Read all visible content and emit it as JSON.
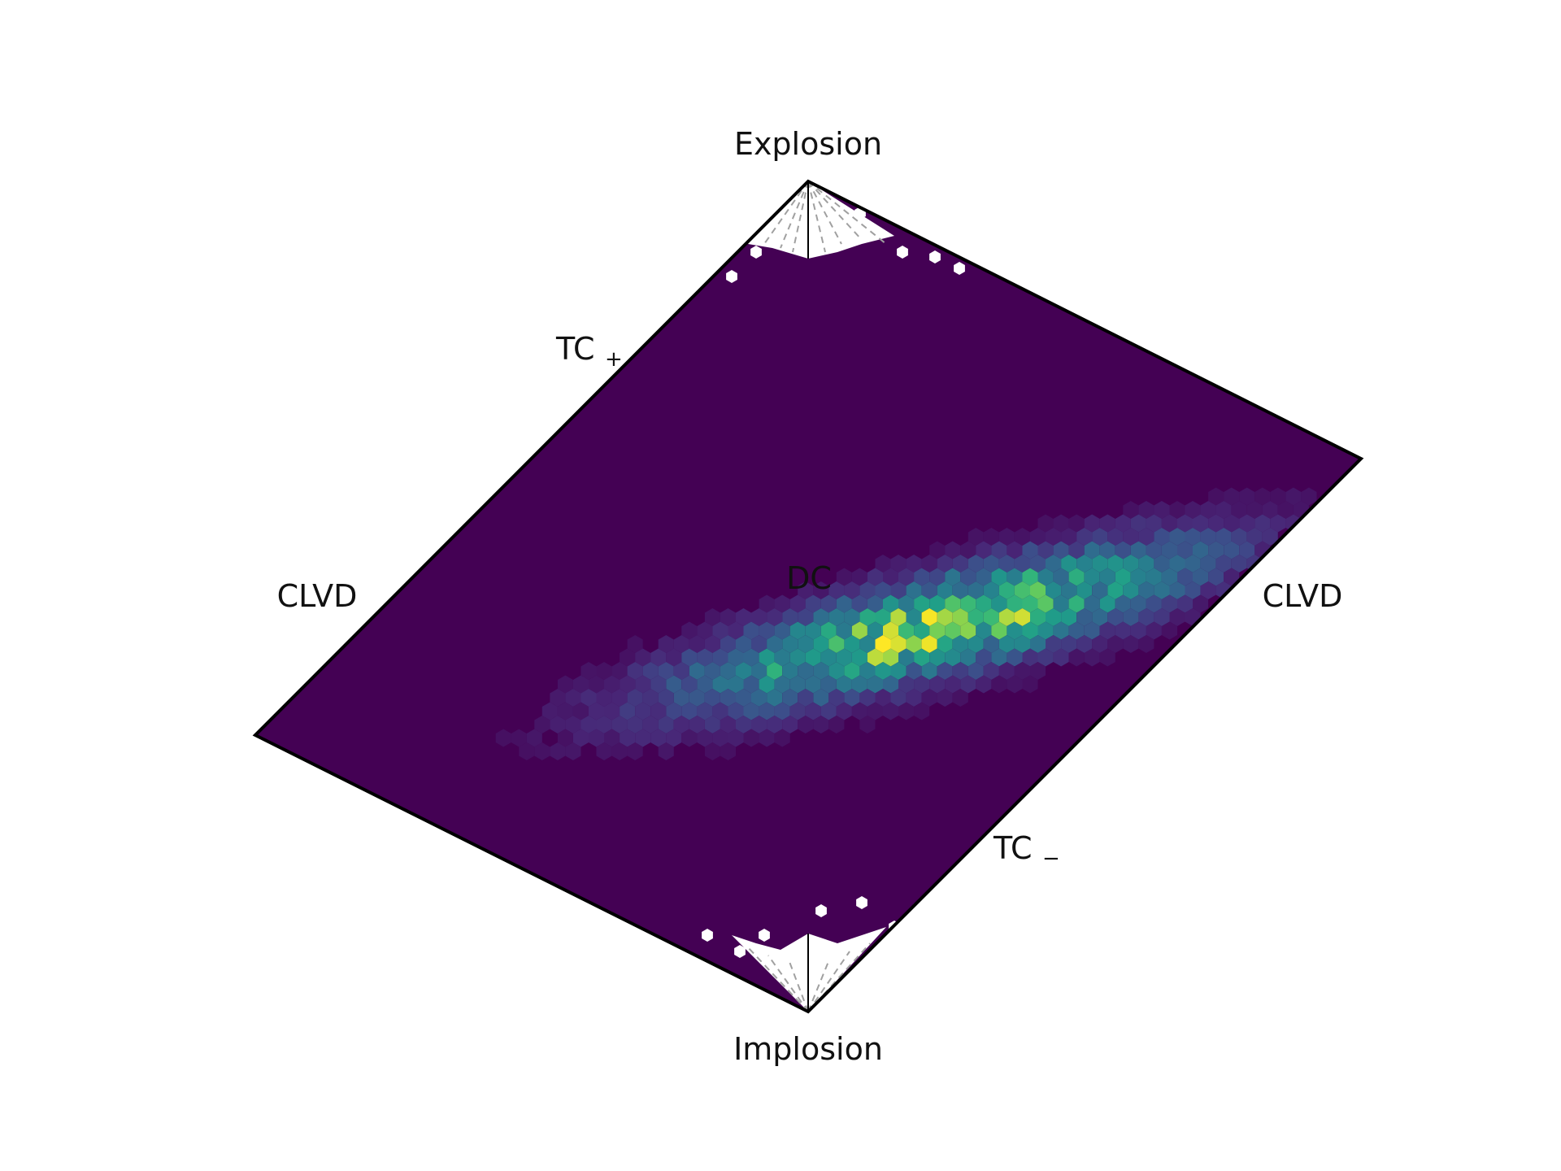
{
  "chart_data": {
    "type": "heatmap",
    "plot_kind": "hexbin on moment-tensor source-type (lune / Hudson) diagram",
    "colormap": "viridis",
    "title": "",
    "xlabel": "",
    "ylabel": "",
    "grid": false,
    "legend": "none",
    "corner_labels": {
      "top": "Explosion",
      "bottom": "Implosion",
      "left": "CLVD",
      "right": "CLVD",
      "center": "DC",
      "tc_plus_main": "TC",
      "tc_plus_sub": "+",
      "tc_minus_main": "TC",
      "tc_minus_sub": "−"
    },
    "background_value": 0.0,
    "density_peak": {
      "center_u": 0.24,
      "center_v": -0.15,
      "spread_u": 0.32,
      "spread_v": 0.08,
      "max_value": 1.0
    },
    "colors": {
      "low": "#440154",
      "mid": "#21918c",
      "high": "#fde725",
      "outline": "#000000",
      "guide_lines": "#a0a0a0"
    }
  }
}
